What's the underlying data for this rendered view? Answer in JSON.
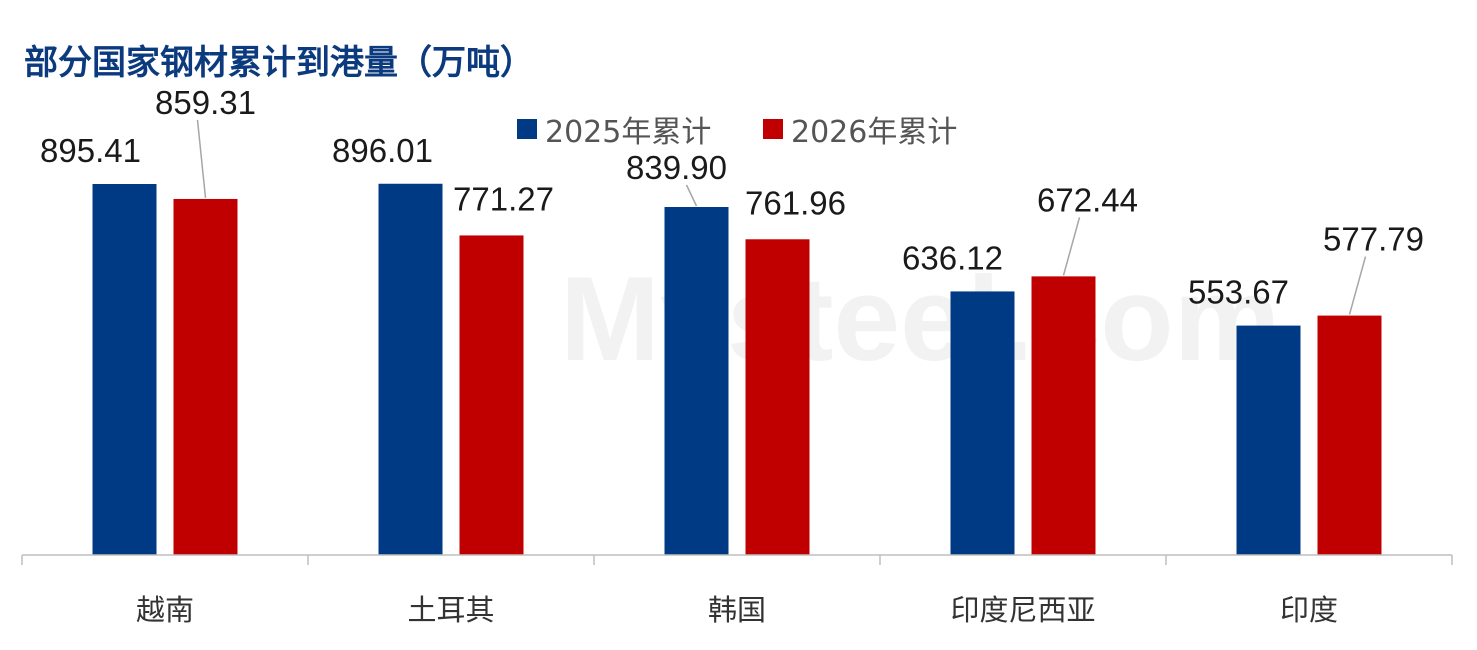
{
  "chart_data": {
    "type": "bar",
    "title": "部分国家钢材累计到港量（万吨）",
    "categories": [
      "越南",
      "土耳其",
      "韩国",
      "印度尼西亚",
      "印度"
    ],
    "series": [
      {
        "name": "2025年累计",
        "color": "#003a84",
        "values": [
          895.41,
          896.01,
          839.9,
          636.12,
          553.67
        ]
      },
      {
        "name": "2026年累计",
        "color": "#c00000",
        "values": [
          859.31,
          771.27,
          761.96,
          672.44,
          577.79
        ]
      }
    ],
    "value_labels": [
      [
        "895.41",
        "896.01",
        "839.90",
        "636.12",
        "553.67"
      ],
      [
        "859.31",
        "771.27",
        "761.96",
        "672.44",
        "577.79"
      ]
    ],
    "ylim": [
      0,
      1000
    ],
    "grid": false,
    "legend_position": "top-center"
  },
  "watermark": "Mysteel.com"
}
